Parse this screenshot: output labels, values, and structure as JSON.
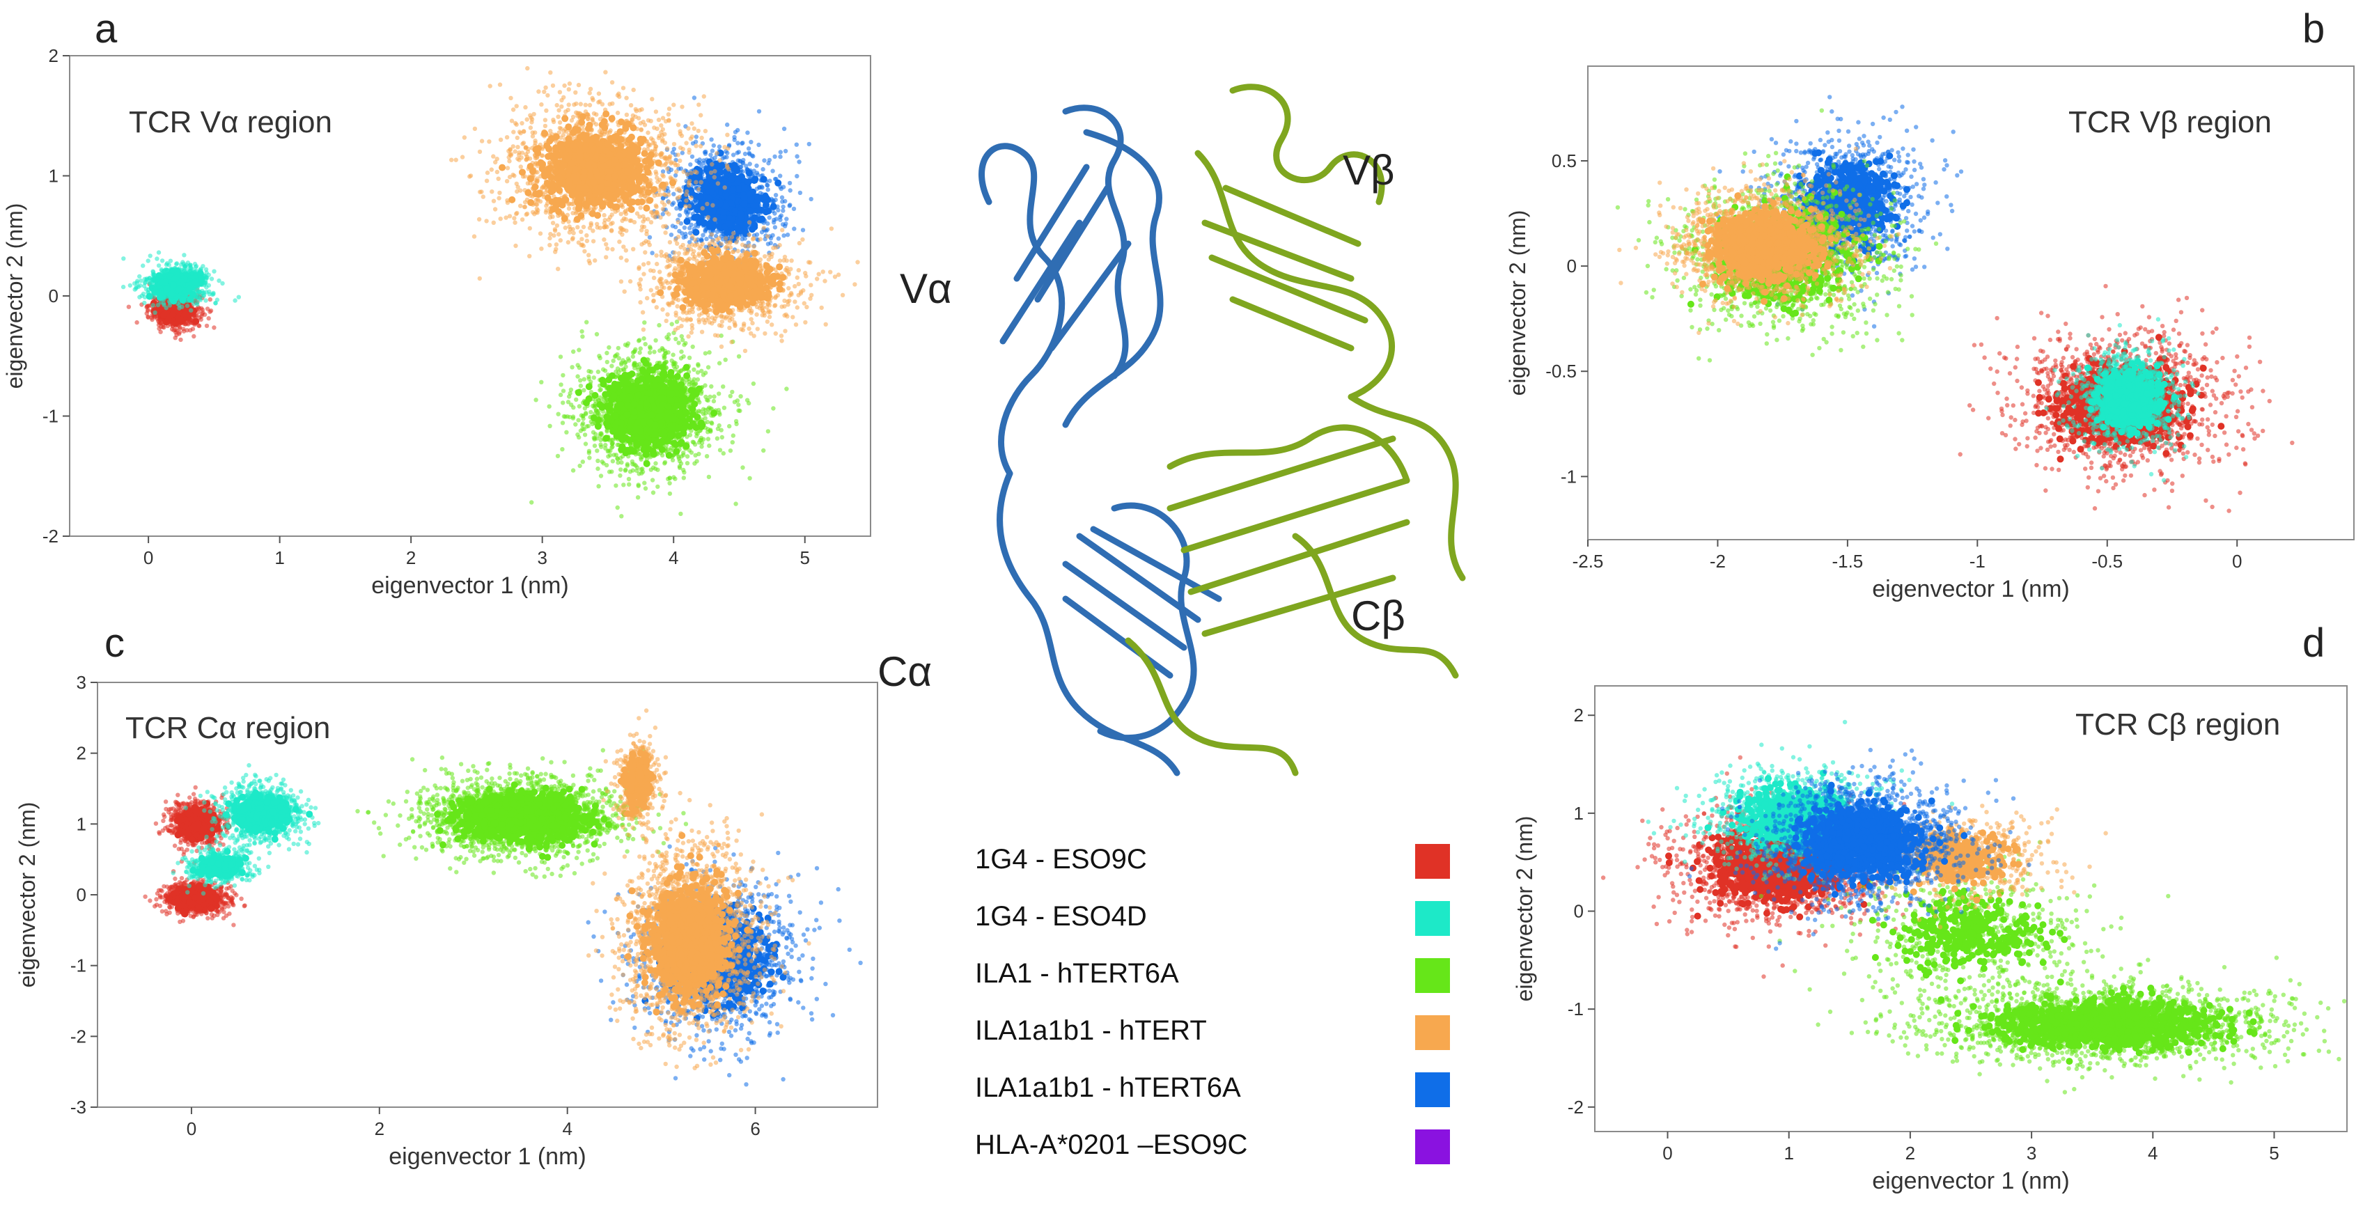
{
  "panels": {
    "a": {
      "letter": "a"
    },
    "b": {
      "letter": "b"
    },
    "c": {
      "letter": "c"
    },
    "d": {
      "letter": "d"
    }
  },
  "structure": {
    "labels": {
      "va": "Vα",
      "vb": "Vβ",
      "ca": "Cα",
      "cb": "Cβ"
    },
    "colors": {
      "alpha_chain": "#2f6db3",
      "beta_chain": "#7fa61f"
    }
  },
  "legend": {
    "items": [
      {
        "label": "1G4 - ESO9C",
        "color": "#e03226"
      },
      {
        "label": "1G4 - ESO4D",
        "color": "#1de9c8"
      },
      {
        "label": "ILA1 - hTERT6A",
        "color": "#66e619"
      },
      {
        "label": "ILA1a1b1 - hTERT",
        "color": "#f7a84f"
      },
      {
        "label": "ILA1a1b1 - hTERT6A",
        "color": "#0f6ee8"
      },
      {
        "label": "HLA-A*0201 –ESO9C",
        "color": "#8a12e0"
      }
    ]
  },
  "chart_data": [
    {
      "type": "scatter",
      "id": "a",
      "title": "TCR Vα region",
      "xlabel": "eigenvector 1 (nm)",
      "ylabel": "eigenvector 2 (nm)",
      "xlim": [
        -0.6,
        5.5
      ],
      "ylim": [
        -2,
        2
      ],
      "xticks": [
        0,
        1,
        2,
        3,
        4,
        5
      ],
      "yticks": [
        -2,
        -1,
        0,
        1,
        2
      ],
      "clusters": [
        {
          "series": "1G4 - ESO9C",
          "color": "#e03226",
          "cx": 0.2,
          "cy": -0.12,
          "sx": 0.1,
          "sy": 0.08,
          "n": 500
        },
        {
          "series": "1G4 - ESO4D",
          "color": "#1de9c8",
          "cx": 0.22,
          "cy": 0.1,
          "sx": 0.13,
          "sy": 0.08,
          "n": 600
        },
        {
          "series": "ILA1 - hTERT6A",
          "color": "#66e619",
          "cx": 3.8,
          "cy": -0.95,
          "sx": 0.28,
          "sy": 0.25,
          "n": 1500
        },
        {
          "series": "ILA1a1b1 - hTERT6A",
          "color": "#0f6ee8",
          "cx": 4.4,
          "cy": 0.8,
          "sx": 0.22,
          "sy": 0.22,
          "n": 900
        },
        {
          "series": "ILA1a1b1 - hTERT",
          "color": "#f7a84f",
          "cx": 3.4,
          "cy": 1.05,
          "sx": 0.35,
          "sy": 0.28,
          "n": 1500
        },
        {
          "series": "ILA1a1b1 - hTERT",
          "color": "#f7a84f",
          "cx": 4.4,
          "cy": 0.1,
          "sx": 0.3,
          "sy": 0.18,
          "n": 900
        }
      ]
    },
    {
      "type": "scatter",
      "id": "b",
      "title": "TCR Vβ region",
      "xlabel": "eigenvector 1 (nm)",
      "ylabel": "eigenvector 2 (nm)",
      "xlim": [
        -2.5,
        0.45
      ],
      "ylim": [
        -1.3,
        0.95
      ],
      "xticks": [
        -2.5,
        -2,
        -1.5,
        -1,
        -0.5,
        0
      ],
      "yticks": [
        -1,
        -0.5,
        0,
        0.5
      ],
      "clusters": [
        {
          "series": "ILA1a1b1 - hTERT6A",
          "color": "#0f6ee8",
          "cx": -1.5,
          "cy": 0.3,
          "sx": 0.15,
          "sy": 0.16,
          "n": 900
        },
        {
          "series": "ILA1 - hTERT6A",
          "color": "#66e619",
          "cx": -1.75,
          "cy": 0.05,
          "sx": 0.2,
          "sy": 0.17,
          "n": 1200
        },
        {
          "series": "ILA1a1b1 - hTERT",
          "color": "#f7a84f",
          "cx": -1.82,
          "cy": 0.1,
          "sx": 0.17,
          "sy": 0.13,
          "n": 1400
        },
        {
          "series": "1G4 - ESO9C",
          "color": "#e03226",
          "cx": -0.45,
          "cy": -0.65,
          "sx": 0.2,
          "sy": 0.16,
          "n": 1400
        },
        {
          "series": "1G4 - ESO4D",
          "color": "#1de9c8",
          "cx": -0.42,
          "cy": -0.63,
          "sx": 0.1,
          "sy": 0.11,
          "n": 900
        }
      ]
    },
    {
      "type": "scatter",
      "id": "c",
      "title": "TCR Cα region",
      "xlabel": "eigenvector 1 (nm)",
      "ylabel": "eigenvector 2 (nm)",
      "xlim": [
        -1,
        7.3
      ],
      "ylim": [
        -3,
        3
      ],
      "xticks": [
        0,
        2,
        4,
        6
      ],
      "yticks": [
        -3,
        -2,
        -1,
        0,
        1,
        2,
        3
      ],
      "clusters": [
        {
          "series": "1G4 - ESO9C",
          "color": "#e03226",
          "cx": 0.05,
          "cy": 1.0,
          "sx": 0.15,
          "sy": 0.16,
          "n": 600
        },
        {
          "series": "1G4 - ESO9C",
          "color": "#e03226",
          "cx": 0.05,
          "cy": -0.05,
          "sx": 0.18,
          "sy": 0.12,
          "n": 600
        },
        {
          "series": "1G4 - ESO4D",
          "color": "#1de9c8",
          "cx": 0.75,
          "cy": 1.15,
          "sx": 0.22,
          "sy": 0.2,
          "n": 800
        },
        {
          "series": "1G4 - ESO4D",
          "color": "#1de9c8",
          "cx": 0.3,
          "cy": 0.4,
          "sx": 0.18,
          "sy": 0.12,
          "n": 400
        },
        {
          "series": "ILA1 - hTERT6A",
          "color": "#66e619",
          "cx": 3.5,
          "cy": 1.1,
          "sx": 0.55,
          "sy": 0.28,
          "n": 1800
        },
        {
          "series": "ILA1a1b1 - hTERT6A",
          "color": "#0f6ee8",
          "cx": 5.6,
          "cy": -0.9,
          "sx": 0.45,
          "sy": 0.55,
          "n": 1100
        },
        {
          "series": "ILA1a1b1 - hTERT",
          "color": "#f7a84f",
          "cx": 5.3,
          "cy": -0.6,
          "sx": 0.35,
          "sy": 0.65,
          "n": 1800
        },
        {
          "series": "ILA1a1b1 - hTERT",
          "color": "#f7a84f",
          "cx": 4.75,
          "cy": 1.6,
          "sx": 0.12,
          "sy": 0.3,
          "n": 400
        }
      ]
    },
    {
      "type": "scatter",
      "id": "d",
      "title": "TCR Cβ region",
      "xlabel": "eigenvector 1 (nm)",
      "ylabel": "eigenvector 2 (nm)",
      "xlim": [
        -0.6,
        5.6
      ],
      "ylim": [
        -2.25,
        2.3
      ],
      "xticks": [
        0,
        1,
        2,
        3,
        4,
        5
      ],
      "yticks": [
        -2,
        -1,
        0,
        1,
        2
      ],
      "clusters": [
        {
          "series": "1G4 - ESO9C",
          "color": "#e03226",
          "cx": 0.9,
          "cy": 0.45,
          "sx": 0.45,
          "sy": 0.3,
          "n": 1300
        },
        {
          "series": "ILA1 - hTERT6A",
          "color": "#66e619",
          "cx": 3.6,
          "cy": -1.15,
          "sx": 0.75,
          "sy": 0.2,
          "n": 1800
        },
        {
          "series": "ILA1 - hTERT6A",
          "color": "#66e619",
          "cx": 2.5,
          "cy": -0.2,
          "sx": 0.5,
          "sy": 0.35,
          "n": 500
        },
        {
          "series": "ILA1a1b1 - hTERT",
          "color": "#f7a84f",
          "cx": 2.4,
          "cy": 0.55,
          "sx": 0.35,
          "sy": 0.22,
          "n": 500
        },
        {
          "series": "1G4 - ESO4D",
          "color": "#1de9c8",
          "cx": 1.05,
          "cy": 0.95,
          "sx": 0.35,
          "sy": 0.25,
          "n": 1000
        },
        {
          "series": "ILA1a1b1 - hTERT6A",
          "color": "#0f6ee8",
          "cx": 1.6,
          "cy": 0.7,
          "sx": 0.4,
          "sy": 0.3,
          "n": 1600
        }
      ]
    }
  ]
}
